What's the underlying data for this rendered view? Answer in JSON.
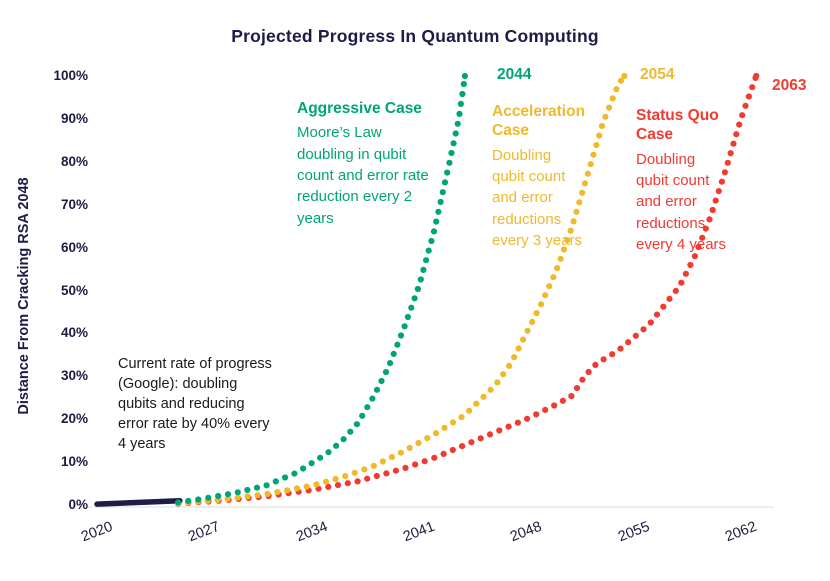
{
  "title": "Projected Progress In Quantum Computing",
  "y_axis": {
    "label": "Distance From Cracking RSA 2048",
    "ticks": [
      "0%",
      "10%",
      "20%",
      "30%",
      "40%",
      "50%",
      "60%",
      "70%",
      "80%",
      "90%",
      "100%"
    ]
  },
  "x_axis": {
    "ticks": [
      "2020",
      "2027",
      "2034",
      "2041",
      "2048",
      "2055",
      "2062"
    ]
  },
  "colors": {
    "navy": "#1C1C47",
    "green": "#00A577",
    "yellow": "#EEB92B",
    "red": "#F13A30",
    "annotation_black": "#1A1A1A",
    "axis_line": "#DCDCDC"
  },
  "annotations": {
    "aggressive": {
      "heading": "Aggressive Case",
      "body": "Moore’s Law doubling in qubit count and error rate reduction every 2 years",
      "end_year": "2044"
    },
    "acceleration": {
      "heading": "Acceleration Case",
      "body": "Doubling qubit count and error reductions every 3 years",
      "end_year": "2054"
    },
    "status_quo": {
      "heading": "Status Quo Case",
      "body": "Doubling qubit count and error reductions every 4 years",
      "end_year": "2063"
    },
    "current": {
      "body": "Current rate of progress (Google): doubling qubits and reducing error rate by 40% every 4 years"
    }
  },
  "chart_data": {
    "type": "line",
    "style": "dotted",
    "title": "Projected Progress In Quantum Computing",
    "xlabel": "",
    "ylabel": "Distance From Cracking RSA 2048",
    "xlim": [
      2020,
      2064
    ],
    "ylim": [
      0,
      100
    ],
    "x_ticks": [
      2020,
      2027,
      2034,
      2041,
      2048,
      2055,
      2062
    ],
    "y_ticks_percent": [
      0,
      10,
      20,
      30,
      40,
      50,
      60,
      70,
      80,
      90,
      100
    ],
    "grid": false,
    "legend": "inline-annotations",
    "baseline": {
      "name": "Current rate of progress (Google)",
      "color_key": "navy",
      "style": "solid",
      "points": [
        [
          2020,
          0.2
        ],
        [
          2025.4,
          1.0
        ]
      ]
    },
    "series": [
      {
        "id": "aggressive",
        "name": "Aggressive Case",
        "color_key": "green",
        "end_label": "2044",
        "points": [
          [
            2025.3,
            0.6
          ],
          [
            2027,
            1.5
          ],
          [
            2029,
            2.8
          ],
          [
            2031,
            4.5
          ],
          [
            2033,
            7.5
          ],
          [
            2035,
            12
          ],
          [
            2036,
            15
          ],
          [
            2037,
            19
          ],
          [
            2038,
            25
          ],
          [
            2039,
            32
          ],
          [
            2040,
            41
          ],
          [
            2041,
            51
          ],
          [
            2042,
            64
          ],
          [
            2043,
            80
          ],
          [
            2043.6,
            90
          ],
          [
            2044,
            100
          ]
        ]
      },
      {
        "id": "acceleration",
        "name": "Acceleration Case",
        "color_key": "yellow",
        "end_label": "2054",
        "points": [
          [
            2025.3,
            0.4
          ],
          [
            2028,
            1.2
          ],
          [
            2031,
            2.5
          ],
          [
            2034,
            4.5
          ],
          [
            2036,
            6.5
          ],
          [
            2038,
            9
          ],
          [
            2040,
            12.5
          ],
          [
            2042,
            16.5
          ],
          [
            2044,
            21
          ],
          [
            2046,
            28
          ],
          [
            2047,
            33
          ],
          [
            2048,
            40
          ],
          [
            2049,
            47
          ],
          [
            2050,
            55
          ],
          [
            2051,
            65
          ],
          [
            2052,
            77
          ],
          [
            2053,
            89
          ],
          [
            2054,
            98
          ],
          [
            2054.4,
            100
          ]
        ]
      },
      {
        "id": "status-quo",
        "name": "Status Quo Case",
        "color_key": "red",
        "end_label": "2063",
        "points": [
          [
            2025.3,
            0.3
          ],
          [
            2028,
            1
          ],
          [
            2031,
            2
          ],
          [
            2034,
            3.5
          ],
          [
            2037,
            5.5
          ],
          [
            2040,
            8.5
          ],
          [
            2042,
            11
          ],
          [
            2044,
            14
          ],
          [
            2046,
            17
          ],
          [
            2048,
            20
          ],
          [
            2050,
            23.5
          ],
          [
            2051,
            25.5
          ],
          [
            2051.8,
            30
          ],
          [
            2052.6,
            33
          ],
          [
            2054,
            36
          ],
          [
            2056,
            42
          ],
          [
            2058,
            51
          ],
          [
            2059,
            58
          ],
          [
            2060,
            67
          ],
          [
            2061,
            78
          ],
          [
            2062,
            90
          ],
          [
            2063,
            100
          ]
        ]
      }
    ]
  }
}
